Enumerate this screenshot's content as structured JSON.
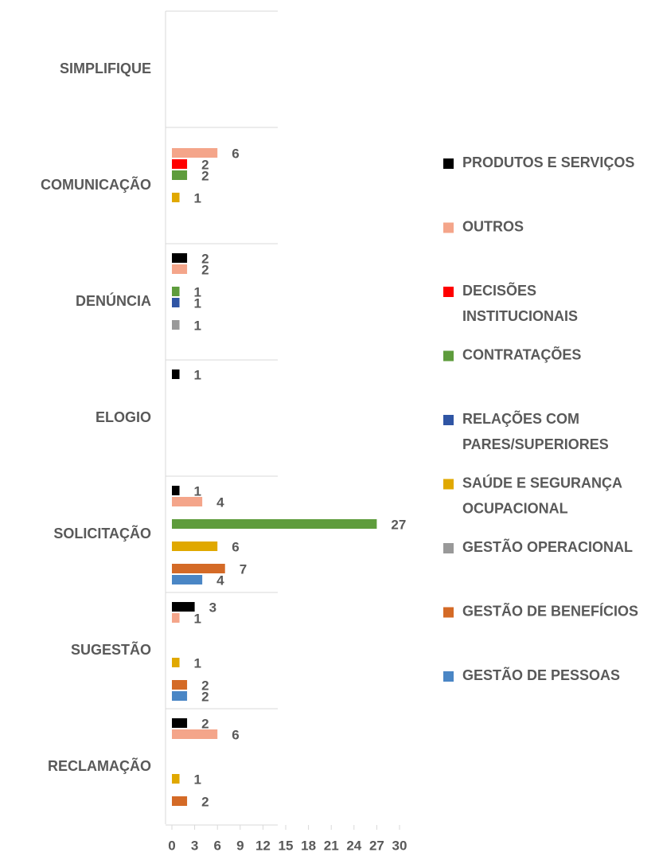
{
  "chart_data": {
    "type": "hbar",
    "categories": [
      "SIMPLIFIQUE",
      "COMUNICAÇÃO",
      "DENÚNCIA",
      "ELOGIO",
      "SOLICITAÇÃO",
      "SUGESTÃO",
      "RECLAMAÇÃO"
    ],
    "series": [
      {
        "name": "PRODUTOS E SERVIÇOS",
        "color": "#000000",
        "values": [
          null,
          null,
          2,
          1,
          1,
          3,
          2
        ]
      },
      {
        "name": "OUTROS",
        "color": "#f4a58a",
        "values": [
          null,
          6,
          2,
          null,
          4,
          1,
          6
        ]
      },
      {
        "name": "DECISÕES INSTITUCIONAIS",
        "color": "#ff0000",
        "values": [
          null,
          2,
          null,
          null,
          null,
          null,
          null
        ]
      },
      {
        "name": "CONTRATAÇÕES",
        "color": "#5e9c3c",
        "values": [
          null,
          2,
          1,
          null,
          27,
          null,
          null
        ]
      },
      {
        "name": "RELAÇÕES COM PARES/SUPERIORES",
        "color": "#2f55a4",
        "values": [
          null,
          null,
          1,
          null,
          null,
          null,
          null
        ]
      },
      {
        "name": "SAÚDE E SEGURANÇA OCUPACIONAL",
        "color": "#e0a800",
        "values": [
          null,
          1,
          null,
          null,
          6,
          1,
          1
        ]
      },
      {
        "name": "GESTÃO OPERACIONAL",
        "color": "#999999",
        "values": [
          null,
          null,
          1,
          null,
          null,
          null,
          null
        ]
      },
      {
        "name": "GESTÃO DE BENEFÍCIOS",
        "color": "#d46a26",
        "values": [
          null,
          null,
          null,
          null,
          7,
          2,
          2
        ]
      },
      {
        "name": "GESTÃO DE PESSOAS",
        "color": "#4a86c5",
        "values": [
          null,
          null,
          null,
          null,
          4,
          2,
          null
        ]
      }
    ],
    "xlim": [
      0,
      30
    ],
    "xticks": [
      0,
      3,
      6,
      9,
      12,
      15,
      18,
      21,
      24,
      27,
      30
    ],
    "legend": "right"
  }
}
